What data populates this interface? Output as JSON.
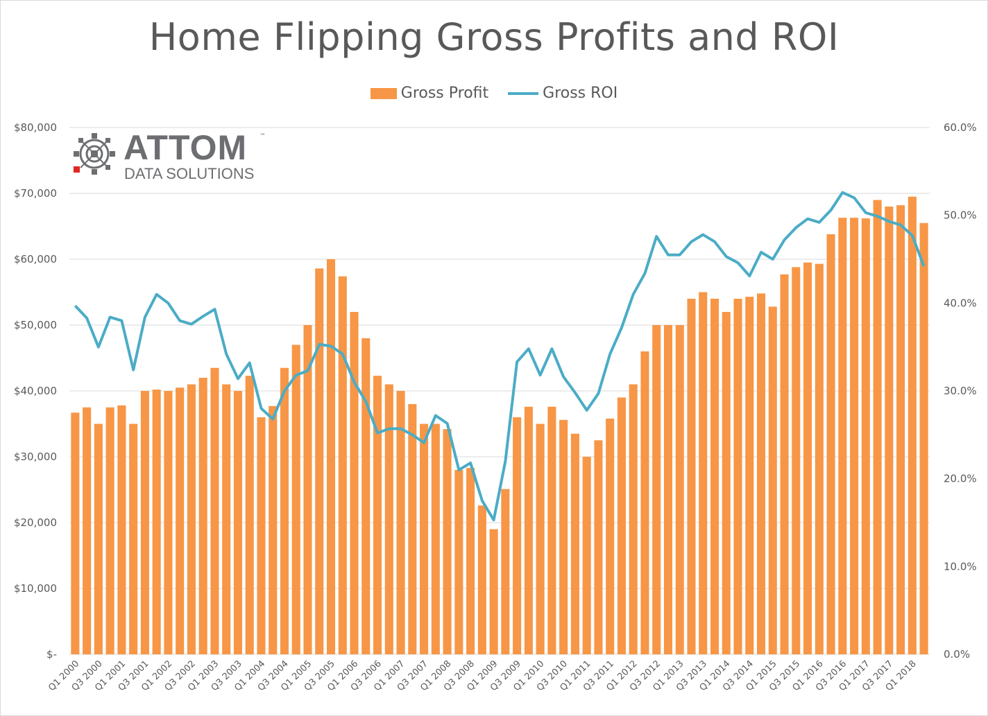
{
  "chart_data": {
    "type": "bar",
    "title": "Home Flipping Gross Profits and ROI",
    "legend_position": "top",
    "grid": true,
    "y_left": {
      "range": [
        0,
        80000
      ],
      "tick_labels": [
        "$-",
        "$10,000",
        "$20,000",
        "$30,000",
        "$40,000",
        "$50,000",
        "$60,000",
        "$70,000",
        "$80,000"
      ]
    },
    "y_right": {
      "range": [
        0,
        0.6
      ],
      "tick_labels": [
        "0.0%",
        "10.0%",
        "20.0%",
        "30.0%",
        "40.0%",
        "50.0%",
        "60.0%"
      ]
    },
    "x_tick_labels": [
      "Q1 2000",
      "Q3 2000",
      "Q1 2001",
      "Q3 2001",
      "Q1 2002",
      "Q3 2002",
      "Q1 2003",
      "Q3 2003",
      "Q1 2004",
      "Q3 2004",
      "Q1 2005",
      "Q3 2005",
      "Q1 2006",
      "Q3 2006",
      "Q1 2007",
      "Q3 2007",
      "Q1 2008",
      "Q3 2008",
      "Q1 2009",
      "Q3 2009",
      "Q1 2010",
      "Q3 2010",
      "Q1 2011",
      "Q3 2011",
      "Q1 2012",
      "Q3 2012",
      "Q1 2013",
      "Q3 2013",
      "Q1 2014",
      "Q3 2014",
      "Q1 2015",
      "Q3 2015",
      "Q1 2016",
      "Q3 2016",
      "Q1 2017",
      "Q3 2017",
      "Q1 2018"
    ],
    "series": [
      {
        "name": "Gross Profit",
        "type": "bar",
        "color": "#f79646",
        "axis": "left",
        "values": [
          36700,
          37500,
          35000,
          37500,
          37800,
          35000,
          40000,
          40200,
          40000,
          40500,
          41000,
          42000,
          43500,
          41000,
          40000,
          42300,
          36000,
          37700,
          43500,
          47000,
          50000,
          58600,
          60000,
          57400,
          52000,
          48000,
          42300,
          41000,
          40000,
          38000,
          35000,
          35000,
          34200,
          28000,
          28300,
          22600,
          19000,
          25100,
          36000,
          37600,
          35000,
          37600,
          35600,
          33500,
          30000,
          32500,
          35800,
          39000,
          41000,
          46000,
          50000,
          50000,
          50000,
          54000,
          55000,
          54000,
          52000,
          54000,
          54300,
          54800,
          52800,
          57700,
          58800,
          59500,
          59300,
          63800,
          66300,
          66300,
          66200,
          69000,
          68000,
          68200,
          69500,
          65500
        ]
      },
      {
        "name": "Gross ROI",
        "type": "line",
        "color": "#4bacc6",
        "axis": "right",
        "values": [
          0.397,
          0.383,
          0.35,
          0.384,
          0.38,
          0.324,
          0.384,
          0.41,
          0.4,
          0.38,
          0.376,
          0.385,
          0.393,
          0.342,
          0.314,
          0.332,
          0.28,
          0.268,
          0.3,
          0.318,
          0.323,
          0.353,
          0.351,
          0.342,
          0.31,
          0.288,
          0.252,
          0.257,
          0.257,
          0.25,
          0.241,
          0.272,
          0.263,
          0.21,
          0.218,
          0.175,
          0.153,
          0.22,
          0.333,
          0.348,
          0.318,
          0.348,
          0.316,
          0.298,
          0.278,
          0.297,
          0.342,
          0.372,
          0.41,
          0.434,
          0.476,
          0.455,
          0.455,
          0.47,
          0.478,
          0.47,
          0.453,
          0.446,
          0.431,
          0.458,
          0.45,
          0.472,
          0.486,
          0.496,
          0.492,
          0.506,
          0.526,
          0.52,
          0.503,
          0.499,
          0.493,
          0.489,
          0.477,
          0.442
        ]
      }
    ]
  },
  "logo": {
    "word": "ATTOM",
    "trademark": "™",
    "subtitle": "DATA SOLUTIONS"
  }
}
